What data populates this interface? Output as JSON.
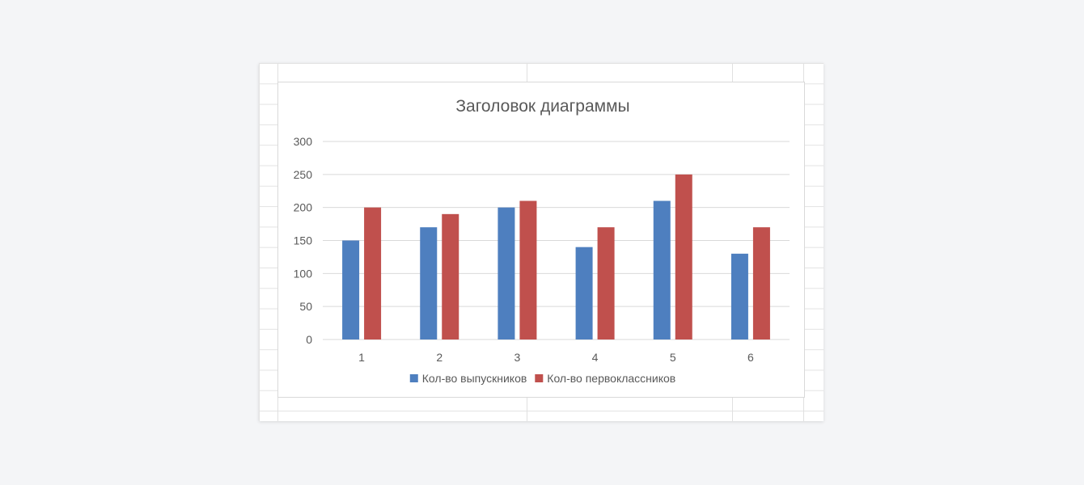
{
  "chart_data": {
    "type": "bar",
    "title": "Заголовок диаграммы",
    "xlabel": "",
    "ylabel": "",
    "categories": [
      "1",
      "2",
      "3",
      "4",
      "5",
      "6"
    ],
    "series": [
      {
        "name": "Кол-во выпускников",
        "color": "#4e7fbf",
        "values": [
          150,
          170,
          200,
          140,
          210,
          130
        ]
      },
      {
        "name": "Кол-во первоклассников",
        "color": "#c0504d",
        "values": [
          200,
          190,
          210,
          170,
          250,
          170
        ]
      }
    ],
    "ylim": [
      0,
      300
    ],
    "yticks": [
      "0",
      "50",
      "100",
      "150",
      "200",
      "250",
      "300"
    ],
    "grid": true,
    "legend_position": "bottom"
  },
  "colors": {
    "gridline": "#d9d9d9",
    "axis_text": "#595959",
    "title_text": "#595959"
  }
}
